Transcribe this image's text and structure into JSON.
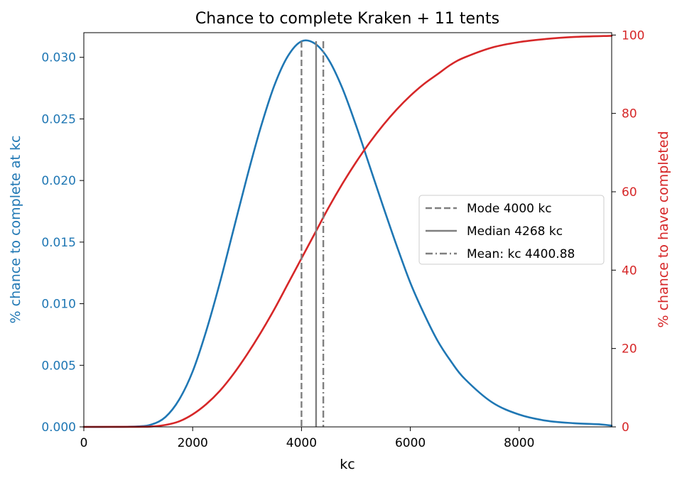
{
  "chart_data": {
    "type": "line",
    "title": "Chance to complete Kraken + 11 tents",
    "xlabel": "kc",
    "ylabel_left": "% chance to complete at kc",
    "ylabel_right": "% chance to have completed",
    "xlim": [
      0,
      9700
    ],
    "ylim_left": [
      0,
      0.032
    ],
    "ylim_right": [
      0,
      100.6
    ],
    "x_ticks": [
      0,
      2000,
      4000,
      6000,
      8000
    ],
    "x_tick_labels": [
      "0",
      "2000",
      "4000",
      "6000",
      "8000"
    ],
    "y_left_ticks": [
      0.0,
      0.005,
      0.01,
      0.015,
      0.02,
      0.025,
      0.03
    ],
    "y_left_tick_labels": [
      "0.000",
      "0.005",
      "0.010",
      "0.015",
      "0.020",
      "0.025",
      "0.030"
    ],
    "y_right_ticks": [
      0,
      20,
      40,
      60,
      80,
      100
    ],
    "y_right_tick_labels": [
      "0",
      "20",
      "40",
      "60",
      "80",
      "100"
    ],
    "grid": false,
    "legend_position": "center-right",
    "colors": {
      "pdf": "#1f77b4",
      "cdf": "#d62728",
      "markers": "#7f7f7f"
    },
    "series": [
      {
        "axis": "left",
        "color": "#1f77b4",
        "points": [
          [
            0,
            0.0
          ],
          [
            500,
            0.0
          ],
          [
            1000,
            4e-05
          ],
          [
            1250,
            0.0002
          ],
          [
            1500,
            0.0008
          ],
          [
            1750,
            0.0022
          ],
          [
            2000,
            0.0045
          ],
          [
            2250,
            0.0078
          ],
          [
            2500,
            0.0117
          ],
          [
            2750,
            0.016
          ],
          [
            3000,
            0.0203
          ],
          [
            3250,
            0.0243
          ],
          [
            3500,
            0.0277
          ],
          [
            3750,
            0.0301
          ],
          [
            4000,
            0.0313
          ],
          [
            4250,
            0.0311
          ],
          [
            4500,
            0.0298
          ],
          [
            4750,
            0.0275
          ],
          [
            5000,
            0.0245
          ],
          [
            5250,
            0.0212
          ],
          [
            5500,
            0.0179
          ],
          [
            5750,
            0.0147
          ],
          [
            6000,
            0.0117
          ],
          [
            6250,
            0.0092
          ],
          [
            6500,
            0.007
          ],
          [
            6750,
            0.0053
          ],
          [
            7000,
            0.0039
          ],
          [
            7500,
            0.002
          ],
          [
            8000,
            0.001
          ],
          [
            8500,
            0.0005
          ],
          [
            9000,
            0.0003
          ],
          [
            9500,
            0.0002
          ],
          [
            9700,
            0.0001
          ]
        ]
      },
      {
        "axis": "right",
        "color": "#d62728",
        "points": [
          [
            0,
            0.0
          ],
          [
            1000,
            0.02
          ],
          [
            1250,
            0.1
          ],
          [
            1500,
            0.5
          ],
          [
            1750,
            1.4
          ],
          [
            2000,
            3.2
          ],
          [
            2250,
            5.8
          ],
          [
            2500,
            9.2
          ],
          [
            2750,
            13.5
          ],
          [
            3000,
            18.5
          ],
          [
            3250,
            24.0
          ],
          [
            3500,
            30.0
          ],
          [
            3750,
            36.5
          ],
          [
            4000,
            43.0
          ],
          [
            4250,
            49.5
          ],
          [
            4500,
            56.0
          ],
          [
            4750,
            62.0
          ],
          [
            5000,
            67.5
          ],
          [
            5250,
            72.5
          ],
          [
            5500,
            77.0
          ],
          [
            5750,
            81.0
          ],
          [
            6000,
            84.5
          ],
          [
            6250,
            87.5
          ],
          [
            6500,
            90.0
          ],
          [
            6750,
            92.5
          ],
          [
            7000,
            94.3
          ],
          [
            7500,
            96.8
          ],
          [
            8000,
            98.2
          ],
          [
            8500,
            99.0
          ],
          [
            9000,
            99.5
          ],
          [
            9700,
            99.8
          ]
        ]
      }
    ],
    "vertical_lines": [
      {
        "x": 4000,
        "style": "dashed",
        "label": "Mode 4000 kc"
      },
      {
        "x": 4268,
        "style": "solid",
        "label": "Median 4268 kc"
      },
      {
        "x": 4400.88,
        "style": "dashdot",
        "label": "Mean: kc 4400.88"
      }
    ]
  }
}
